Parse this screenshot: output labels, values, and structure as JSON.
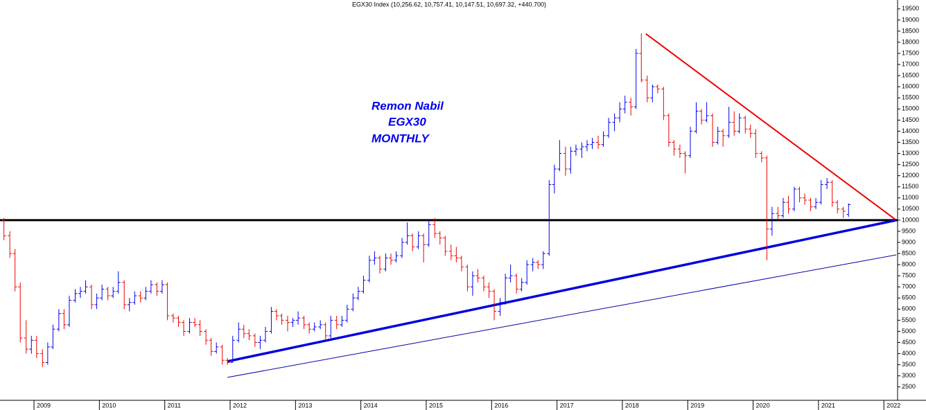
{
  "chart_data": {
    "type": "ohlc",
    "title": "EGX30 Index (10,256.62, 10,757.41, 10,147.51, 10,697.32, +440.700)",
    "annotations": [
      "Remon Nabil",
      "EGX30",
      "MONTHLY"
    ],
    "up_color": "#0000ee",
    "down_color": "#ee0000",
    "xlim": [
      2008.48,
      2022.21
    ],
    "xticks": [
      2009,
      2010,
      2011,
      2012,
      2013,
      2014,
      2015,
      2016,
      2017,
      2018,
      2019,
      2020,
      2021,
      2022
    ],
    "ylim": [
      1900,
      19900
    ],
    "yticks": [
      2500,
      3000,
      3500,
      4000,
      4500,
      5000,
      5500,
      6000,
      6500,
      7000,
      7500,
      8000,
      8500,
      9000,
      9500,
      10000,
      10500,
      11000,
      11500,
      12000,
      12500,
      13000,
      13500,
      14000,
      14500,
      15000,
      15500,
      16000,
      16500,
      17000,
      17500,
      18000,
      18500,
      19000,
      19500
    ],
    "x": [
      2008.54,
      2008.63,
      2008.71,
      2008.79,
      2008.88,
      2008.96,
      2009.04,
      2009.13,
      2009.21,
      2009.29,
      2009.38,
      2009.46,
      2009.54,
      2009.63,
      2009.71,
      2009.79,
      2009.88,
      2009.96,
      2010.04,
      2010.13,
      2010.21,
      2010.29,
      2010.38,
      2010.46,
      2010.54,
      2010.63,
      2010.71,
      2010.79,
      2010.88,
      2010.96,
      2011.04,
      2011.13,
      2011.21,
      2011.29,
      2011.38,
      2011.46,
      2011.54,
      2011.63,
      2011.71,
      2011.79,
      2011.88,
      2011.96,
      2012.04,
      2012.13,
      2012.21,
      2012.29,
      2012.38,
      2012.46,
      2012.54,
      2012.63,
      2012.71,
      2012.79,
      2012.88,
      2012.96,
      2013.04,
      2013.13,
      2013.21,
      2013.29,
      2013.38,
      2013.46,
      2013.54,
      2013.63,
      2013.71,
      2013.79,
      2013.88,
      2013.96,
      2014.04,
      2014.13,
      2014.21,
      2014.29,
      2014.38,
      2014.46,
      2014.54,
      2014.63,
      2014.71,
      2014.79,
      2014.88,
      2014.96,
      2015.04,
      2015.13,
      2015.21,
      2015.29,
      2015.38,
      2015.46,
      2015.54,
      2015.63,
      2015.71,
      2015.79,
      2015.88,
      2015.96,
      2016.04,
      2016.13,
      2016.21,
      2016.29,
      2016.38,
      2016.46,
      2016.54,
      2016.63,
      2016.71,
      2016.79,
      2016.88,
      2016.96,
      2017.04,
      2017.13,
      2017.21,
      2017.29,
      2017.38,
      2017.46,
      2017.54,
      2017.63,
      2017.71,
      2017.79,
      2017.88,
      2017.96,
      2018.04,
      2018.13,
      2018.21,
      2018.29,
      2018.38,
      2018.46,
      2018.54,
      2018.63,
      2018.71,
      2018.79,
      2018.88,
      2018.96,
      2019.04,
      2019.13,
      2019.21,
      2019.29,
      2019.38,
      2019.46,
      2019.54,
      2019.63,
      2019.71,
      2019.79,
      2019.88,
      2019.96,
      2020.04,
      2020.13,
      2020.21,
      2020.29,
      2020.38,
      2020.46,
      2020.54,
      2020.63,
      2020.71,
      2020.79,
      2020.88,
      2020.96,
      2021.04,
      2021.13,
      2021.21,
      2021.29,
      2021.38,
      2021.46
    ],
    "bars": [
      [
        10000,
        10100,
        9100,
        9300
      ],
      [
        9300,
        9500,
        8300,
        8500
      ],
      [
        8500,
        8700,
        6800,
        7000
      ],
      [
        7000,
        7200,
        4500,
        4700
      ],
      [
        4700,
        5500,
        4000,
        4200
      ],
      [
        4200,
        4800,
        4000,
        4600
      ],
      [
        4600,
        4800,
        3800,
        4000
      ],
      [
        4000,
        4200,
        3400,
        3600
      ],
      [
        3600,
        4500,
        3500,
        4300
      ],
      [
        4300,
        5300,
        4200,
        5100
      ],
      [
        5100,
        6000,
        5000,
        5800
      ],
      [
        5800,
        6000,
        5100,
        5300
      ],
      [
        5300,
        6600,
        5200,
        6400
      ],
      [
        6400,
        6900,
        6300,
        6700
      ],
      [
        6700,
        7000,
        6500,
        6800
      ],
      [
        6800,
        7300,
        6700,
        7000
      ],
      [
        7000,
        7100,
        6000,
        6200
      ],
      [
        6200,
        6700,
        6000,
        6500
      ],
      [
        6500,
        7100,
        6400,
        6900
      ],
      [
        6900,
        7000,
        6400,
        6600
      ],
      [
        6600,
        7000,
        6500,
        6800
      ],
      [
        6800,
        7700,
        6700,
        7200
      ],
      [
        7200,
        7300,
        6000,
        6200
      ],
      [
        6200,
        6500,
        5900,
        6300
      ],
      [
        6300,
        6800,
        6200,
        6600
      ],
      [
        6600,
        6800,
        6300,
        6500
      ],
      [
        6500,
        7000,
        6400,
        6800
      ],
      [
        6800,
        7300,
        6700,
        7100
      ],
      [
        7100,
        7200,
        6600,
        6800
      ],
      [
        6800,
        7300,
        6700,
        7100
      ],
      [
        7100,
        7200,
        5500,
        5700
      ],
      [
        5700,
        5800,
        5400,
        5600
      ],
      [
        5600,
        5700,
        5200,
        5400
      ],
      [
        5400,
        5500,
        4800,
        5000
      ],
      [
        5000,
        5600,
        4900,
        5400
      ],
      [
        5400,
        5600,
        5200,
        5300
      ],
      [
        5300,
        5500,
        4800,
        5000
      ],
      [
        5000,
        5100,
        4400,
        4600
      ],
      [
        4600,
        4700,
        3900,
        4100
      ],
      [
        4100,
        4500,
        4000,
        4300
      ],
      [
        4300,
        4400,
        3500,
        3700
      ],
      [
        3700,
        3800,
        3500,
        3600
      ],
      [
        3600,
        4800,
        3600,
        4600
      ],
      [
        4600,
        5400,
        4500,
        5100
      ],
      [
        5100,
        5300,
        4700,
        4900
      ],
      [
        4900,
        5100,
        4600,
        4800
      ],
      [
        4800,
        4900,
        4300,
        4500
      ],
      [
        4500,
        4800,
        4200,
        4600
      ],
      [
        4600,
        5200,
        4500,
        5000
      ],
      [
        5000,
        6100,
        4900,
        5900
      ],
      [
        5900,
        6000,
        5500,
        5700
      ],
      [
        5700,
        5800,
        5300,
        5500
      ],
      [
        5500,
        5700,
        5000,
        5400
      ],
      [
        5400,
        5600,
        5200,
        5500
      ],
      [
        5500,
        5900,
        5300,
        5600
      ],
      [
        5600,
        5700,
        5100,
        5300
      ],
      [
        5300,
        5400,
        4900,
        5100
      ],
      [
        5100,
        5400,
        5000,
        5200
      ],
      [
        5200,
        5500,
        5100,
        5300
      ],
      [
        5300,
        5400,
        4600,
        4800
      ],
      [
        4800,
        5700,
        4700,
        5500
      ],
      [
        5500,
        5700,
        5100,
        5300
      ],
      [
        5300,
        5700,
        5200,
        5500
      ],
      [
        5500,
        6200,
        5400,
        6000
      ],
      [
        6000,
        6700,
        5900,
        6500
      ],
      [
        6500,
        7000,
        6400,
        6800
      ],
      [
        6800,
        7500,
        6700,
        7300
      ],
      [
        7300,
        8400,
        7200,
        8200
      ],
      [
        8200,
        8600,
        8000,
        8300
      ],
      [
        8300,
        8400,
        7600,
        7800
      ],
      [
        7800,
        8500,
        7700,
        8300
      ],
      [
        8300,
        8500,
        8000,
        8200
      ],
      [
        8200,
        8600,
        8100,
        8400
      ],
      [
        8400,
        9200,
        8300,
        9000
      ],
      [
        9000,
        9900,
        8900,
        9300
      ],
      [
        9300,
        9400,
        8600,
        8800
      ],
      [
        8800,
        9500,
        8700,
        9300
      ],
      [
        9300,
        9400,
        8100,
        8900
      ],
      [
        8900,
        10000,
        8800,
        9800
      ],
      [
        9800,
        10100,
        9200,
        9400
      ],
      [
        9400,
        9500,
        8900,
        9200
      ],
      [
        9200,
        9300,
        8400,
        8600
      ],
      [
        8600,
        8900,
        8200,
        8400
      ],
      [
        8400,
        8800,
        8100,
        8300
      ],
      [
        8300,
        8400,
        7700,
        7900
      ],
      [
        7900,
        8000,
        6800,
        7000
      ],
      [
        7000,
        7700,
        6600,
        7500
      ],
      [
        7500,
        7800,
        7200,
        7400
      ],
      [
        7400,
        7500,
        6800,
        7000
      ],
      [
        7000,
        7200,
        6500,
        6800
      ],
      [
        6800,
        6900,
        5500,
        5900
      ],
      [
        5900,
        6500,
        5700,
        6300
      ],
      [
        6300,
        7600,
        6200,
        7400
      ],
      [
        7400,
        8000,
        7200,
        7500
      ],
      [
        7500,
        7600,
        6700,
        6900
      ],
      [
        6900,
        7400,
        6800,
        7200
      ],
      [
        7200,
        8200,
        7100,
        8000
      ],
      [
        8000,
        8300,
        7700,
        8100
      ],
      [
        8100,
        8200,
        7800,
        8000
      ],
      [
        8000,
        8600,
        7800,
        8500
      ],
      [
        8500,
        11800,
        8400,
        11600
      ],
      [
        11600,
        12500,
        11200,
        12300
      ],
      [
        12300,
        13600,
        12200,
        13000
      ],
      [
        13000,
        13300,
        12000,
        12300
      ],
      [
        12300,
        13300,
        12100,
        13100
      ],
      [
        13100,
        13400,
        12900,
        13200
      ],
      [
        13200,
        13500,
        12800,
        13300
      ],
      [
        13300,
        13600,
        13100,
        13400
      ],
      [
        13400,
        13700,
        13200,
        13500
      ],
      [
        13500,
        13800,
        13200,
        13400
      ],
      [
        13400,
        14000,
        13300,
        13800
      ],
      [
        13800,
        14600,
        13700,
        14400
      ],
      [
        14400,
        14800,
        14000,
        14600
      ],
      [
        14600,
        15300,
        14400,
        15000
      ],
      [
        15000,
        15600,
        14800,
        15300
      ],
      [
        15300,
        15500,
        14700,
        15100
      ],
      [
        15100,
        17700,
        15000,
        17500
      ],
      [
        17500,
        18400,
        16200,
        16300
      ],
      [
        16300,
        16500,
        15300,
        15500
      ],
      [
        15500,
        16100,
        15300,
        16000
      ],
      [
        16000,
        16100,
        15700,
        15900
      ],
      [
        15900,
        16000,
        14500,
        14700
      ],
      [
        14700,
        14800,
        13300,
        13500
      ],
      [
        13500,
        13600,
        12900,
        13200
      ],
      [
        13200,
        13400,
        12800,
        13000
      ],
      [
        13000,
        13100,
        12100,
        12900
      ],
      [
        12900,
        14200,
        12800,
        14000
      ],
      [
        14000,
        15300,
        13900,
        14900
      ],
      [
        14900,
        15000,
        14300,
        14500
      ],
      [
        14500,
        15300,
        14400,
        14700
      ],
      [
        14700,
        14800,
        13300,
        13500
      ],
      [
        13500,
        14200,
        13400,
        14000
      ],
      [
        14000,
        14100,
        13300,
        13800
      ],
      [
        13800,
        15100,
        13700,
        14400
      ],
      [
        14400,
        14900,
        13800,
        14000
      ],
      [
        14000,
        14800,
        13900,
        14600
      ],
      [
        14600,
        14700,
        13900,
        14100
      ],
      [
        14100,
        14300,
        13700,
        13900
      ],
      [
        13900,
        14100,
        12800,
        13000
      ],
      [
        13000,
        13100,
        12600,
        12800
      ],
      [
        12800,
        12900,
        8200,
        9600
      ],
      [
        9600,
        10600,
        9300,
        10300
      ],
      [
        10300,
        10600,
        10000,
        10200
      ],
      [
        10200,
        11000,
        10100,
        10800
      ],
      [
        10800,
        11100,
        10300,
        10500
      ],
      [
        10500,
        11500,
        10400,
        11400
      ],
      [
        11400,
        11500,
        10800,
        11000
      ],
      [
        11000,
        11200,
        10700,
        10900
      ],
      [
        10900,
        11000,
        10400,
        10600
      ],
      [
        10600,
        11000,
        10500,
        10800
      ],
      [
        10800,
        11800,
        10700,
        11600
      ],
      [
        11600,
        11900,
        11400,
        11700
      ],
      [
        11700,
        11800,
        10600,
        10800
      ],
      [
        10800,
        10900,
        10300,
        10500
      ],
      [
        10500,
        10600,
        10100,
        10400
      ],
      [
        10256.62,
        10757.41,
        10147.51,
        10697.32
      ]
    ],
    "trend_lines": [
      {
        "color": "#000000",
        "width": 3,
        "x": [
          2008.48,
          2022.21
        ],
        "y": [
          10000,
          10000
        ]
      },
      {
        "color": "#ee0000",
        "width": 2,
        "x": [
          2018.36,
          2022.19
        ],
        "y": [
          18380,
          10000
        ]
      },
      {
        "color": "#0000dd",
        "width": 3.5,
        "x": [
          2011.96,
          2022.19
        ],
        "y": [
          3650,
          10000
        ]
      },
      {
        "color": "#0000aa",
        "width": 1,
        "x": [
          2011.96,
          2022.19
        ],
        "y": [
          2930,
          8440
        ]
      }
    ]
  }
}
